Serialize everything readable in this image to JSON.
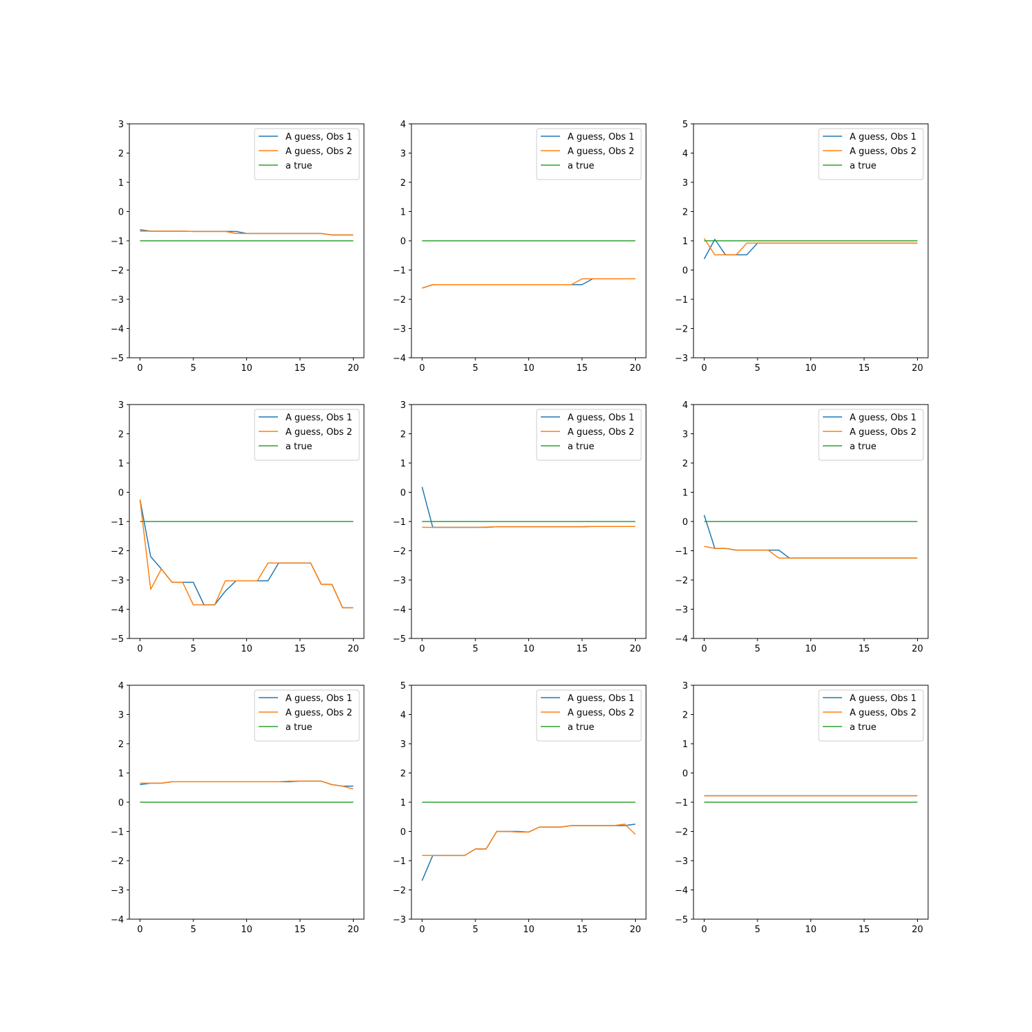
{
  "figure": {
    "colors": {
      "A guess, Obs 1": "#1f77b4",
      "A guess, Obs 2": "#ff7f0e",
      "a true": "#2ca02c"
    }
  },
  "chart_data": [
    {
      "type": "line",
      "xlim": [
        -1,
        21
      ],
      "ylim": [
        -5,
        3
      ],
      "x_ticks": [
        0,
        5,
        10,
        15,
        20
      ],
      "y_ticks": [
        -5,
        -4,
        -3,
        -2,
        -1,
        0,
        1,
        2,
        3
      ],
      "legend_position": "upper-right",
      "x": [
        0,
        1,
        2,
        3,
        4,
        5,
        6,
        7,
        8,
        9,
        10,
        11,
        12,
        13,
        14,
        15,
        16,
        17,
        18,
        19,
        20
      ],
      "series": [
        {
          "name": "A guess, Obs 1",
          "color": "#1f77b4",
          "values": [
            -0.62,
            -0.67,
            -0.67,
            -0.67,
            -0.67,
            -0.68,
            -0.68,
            -0.68,
            -0.68,
            -0.68,
            -0.75,
            -0.75,
            -0.75,
            -0.75,
            -0.75,
            -0.75,
            -0.75,
            -0.75,
            -0.8,
            -0.8,
            -0.8
          ]
        },
        {
          "name": "A guess, Obs 2",
          "color": "#ff7f0e",
          "values": [
            -0.67,
            -0.67,
            -0.67,
            -0.67,
            -0.67,
            -0.68,
            -0.68,
            -0.68,
            -0.68,
            -0.75,
            -0.75,
            -0.75,
            -0.75,
            -0.75,
            -0.75,
            -0.75,
            -0.75,
            -0.75,
            -0.8,
            -0.8,
            -0.8
          ]
        },
        {
          "name": "a true",
          "color": "#2ca02c",
          "values": [
            -1,
            -1,
            -1,
            -1,
            -1,
            -1,
            -1,
            -1,
            -1,
            -1,
            -1,
            -1,
            -1,
            -1,
            -1,
            -1,
            -1,
            -1,
            -1,
            -1,
            -1
          ]
        }
      ]
    },
    {
      "type": "line",
      "xlim": [
        -1,
        21
      ],
      "ylim": [
        -4,
        4
      ],
      "x_ticks": [
        0,
        5,
        10,
        15,
        20
      ],
      "y_ticks": [
        -4,
        -3,
        -2,
        -1,
        0,
        1,
        2,
        3,
        4
      ],
      "legend_position": "upper-right",
      "x": [
        0,
        1,
        2,
        3,
        4,
        5,
        6,
        7,
        8,
        9,
        10,
        11,
        12,
        13,
        14,
        15,
        16,
        17,
        18,
        19,
        20
      ],
      "series": [
        {
          "name": "A guess, Obs 1",
          "color": "#1f77b4",
          "values": [
            -1.62,
            -1.5,
            -1.5,
            -1.5,
            -1.5,
            -1.5,
            -1.5,
            -1.5,
            -1.5,
            -1.5,
            -1.5,
            -1.5,
            -1.5,
            -1.5,
            -1.5,
            -1.5,
            -1.3,
            -1.3,
            -1.3,
            -1.3,
            -1.3
          ]
        },
        {
          "name": "A guess, Obs 2",
          "color": "#ff7f0e",
          "values": [
            -1.62,
            -1.5,
            -1.5,
            -1.5,
            -1.5,
            -1.5,
            -1.5,
            -1.5,
            -1.5,
            -1.5,
            -1.5,
            -1.5,
            -1.5,
            -1.5,
            -1.5,
            -1.3,
            -1.3,
            -1.3,
            -1.3,
            -1.3,
            -1.3
          ]
        },
        {
          "name": "a true",
          "color": "#2ca02c",
          "values": [
            0,
            0,
            0,
            0,
            0,
            0,
            0,
            0,
            0,
            0,
            0,
            0,
            0,
            0,
            0,
            0,
            0,
            0,
            0,
            0,
            0
          ]
        }
      ]
    },
    {
      "type": "line",
      "xlim": [
        -1,
        21
      ],
      "ylim": [
        -3,
        5
      ],
      "x_ticks": [
        0,
        5,
        10,
        15,
        20
      ],
      "y_ticks": [
        -3,
        -2,
        -1,
        0,
        1,
        2,
        3,
        4,
        5
      ],
      "legend_position": "upper-right",
      "x": [
        0,
        1,
        2,
        3,
        4,
        5,
        6,
        7,
        8,
        9,
        10,
        11,
        12,
        13,
        14,
        15,
        16,
        17,
        18,
        19,
        20
      ],
      "series": [
        {
          "name": "A guess, Obs 1",
          "color": "#1f77b4",
          "values": [
            0.38,
            1.05,
            0.52,
            0.52,
            0.52,
            0.92,
            0.92,
            0.92,
            0.92,
            0.92,
            0.92,
            0.92,
            0.92,
            0.92,
            0.92,
            0.92,
            0.92,
            0.92,
            0.92,
            0.92,
            0.92
          ]
        },
        {
          "name": "A guess, Obs 2",
          "color": "#ff7f0e",
          "values": [
            1.08,
            0.52,
            0.52,
            0.52,
            0.92,
            0.92,
            0.92,
            0.92,
            0.92,
            0.92,
            0.92,
            0.92,
            0.92,
            0.92,
            0.92,
            0.92,
            0.92,
            0.92,
            0.92,
            0.92,
            0.92
          ]
        },
        {
          "name": "a true",
          "color": "#2ca02c",
          "values": [
            1,
            1,
            1,
            1,
            1,
            1,
            1,
            1,
            1,
            1,
            1,
            1,
            1,
            1,
            1,
            1,
            1,
            1,
            1,
            1,
            1
          ]
        }
      ]
    },
    {
      "type": "line",
      "xlim": [
        -1,
        21
      ],
      "ylim": [
        -5,
        3
      ],
      "x_ticks": [
        0,
        5,
        10,
        15,
        20
      ],
      "y_ticks": [
        -5,
        -4,
        -3,
        -2,
        -1,
        0,
        1,
        2,
        3
      ],
      "legend_position": "upper-right",
      "x": [
        0,
        1,
        2,
        3,
        4,
        5,
        6,
        7,
        8,
        9,
        10,
        11,
        12,
        13,
        14,
        15,
        16,
        17,
        18,
        19,
        20
      ],
      "series": [
        {
          "name": "A guess, Obs 1",
          "color": "#1f77b4",
          "values": [
            -0.25,
            -2.2,
            -2.62,
            -3.08,
            -3.08,
            -3.08,
            -3.85,
            -3.85,
            -3.38,
            -3.03,
            -3.03,
            -3.03,
            -3.03,
            -2.42,
            -2.42,
            -2.42,
            -2.42,
            -3.15,
            -3.15,
            -3.95,
            -3.95
          ]
        },
        {
          "name": "A guess, Obs 2",
          "color": "#ff7f0e",
          "values": [
            -0.25,
            -3.32,
            -2.62,
            -3.08,
            -3.08,
            -3.85,
            -3.85,
            -3.85,
            -3.03,
            -3.03,
            -3.03,
            -3.03,
            -2.42,
            -2.42,
            -2.42,
            -2.42,
            -2.42,
            -3.15,
            -3.15,
            -3.95,
            -3.95
          ]
        },
        {
          "name": "a true",
          "color": "#2ca02c",
          "values": [
            -1,
            -1,
            -1,
            -1,
            -1,
            -1,
            -1,
            -1,
            -1,
            -1,
            -1,
            -1,
            -1,
            -1,
            -1,
            -1,
            -1,
            -1,
            -1,
            -1,
            -1
          ]
        }
      ]
    },
    {
      "type": "line",
      "xlim": [
        -1,
        21
      ],
      "ylim": [
        -5,
        3
      ],
      "x_ticks": [
        0,
        5,
        10,
        15,
        20
      ],
      "y_ticks": [
        -5,
        -4,
        -3,
        -2,
        -1,
        0,
        1,
        2,
        3
      ],
      "legend_position": "upper-right",
      "x": [
        0,
        1,
        2,
        3,
        4,
        5,
        6,
        7,
        8,
        9,
        10,
        11,
        12,
        13,
        14,
        15,
        16,
        17,
        18,
        19,
        20
      ],
      "series": [
        {
          "name": "A guess, Obs 1",
          "color": "#1f77b4",
          "values": [
            0.18,
            -1.2,
            -1.2,
            -1.2,
            -1.2,
            -1.2,
            -1.2,
            -1.18,
            -1.18,
            -1.18,
            -1.18,
            -1.18,
            -1.18,
            -1.18,
            -1.18,
            -1.18,
            -1.17,
            -1.17,
            -1.17,
            -1.17,
            -1.17
          ]
        },
        {
          "name": "A guess, Obs 2",
          "color": "#ff7f0e",
          "values": [
            -1.2,
            -1.2,
            -1.2,
            -1.2,
            -1.2,
            -1.2,
            -1.19,
            -1.18,
            -1.18,
            -1.18,
            -1.18,
            -1.18,
            -1.18,
            -1.18,
            -1.18,
            -1.18,
            -1.17,
            -1.17,
            -1.17,
            -1.17,
            -1.17
          ]
        },
        {
          "name": "a true",
          "color": "#2ca02c",
          "values": [
            -1,
            -1,
            -1,
            -1,
            -1,
            -1,
            -1,
            -1,
            -1,
            -1,
            -1,
            -1,
            -1,
            -1,
            -1,
            -1,
            -1,
            -1,
            -1,
            -1,
            -1
          ]
        }
      ]
    },
    {
      "type": "line",
      "xlim": [
        -1,
        21
      ],
      "ylim": [
        -4,
        4
      ],
      "x_ticks": [
        0,
        5,
        10,
        15,
        20
      ],
      "y_ticks": [
        -4,
        -3,
        -2,
        -1,
        0,
        1,
        2,
        3,
        4
      ],
      "legend_position": "upper-right",
      "x": [
        0,
        1,
        2,
        3,
        4,
        5,
        6,
        7,
        8,
        9,
        10,
        11,
        12,
        13,
        14,
        15,
        16,
        17,
        18,
        19,
        20
      ],
      "series": [
        {
          "name": "A guess, Obs 1",
          "color": "#1f77b4",
          "values": [
            0.22,
            -0.92,
            -0.92,
            -0.98,
            -0.98,
            -0.98,
            -0.98,
            -0.98,
            -1.25,
            -1.25,
            -1.25,
            -1.25,
            -1.25,
            -1.25,
            -1.25,
            -1.25,
            -1.25,
            -1.25,
            -1.25,
            -1.25,
            -1.25
          ]
        },
        {
          "name": "A guess, Obs 2",
          "color": "#ff7f0e",
          "values": [
            -0.85,
            -0.92,
            -0.92,
            -0.98,
            -0.98,
            -0.98,
            -0.98,
            -1.25,
            -1.25,
            -1.25,
            -1.25,
            -1.25,
            -1.25,
            -1.25,
            -1.25,
            -1.25,
            -1.25,
            -1.25,
            -1.25,
            -1.25,
            -1.25
          ]
        },
        {
          "name": "a true",
          "color": "#2ca02c",
          "values": [
            0,
            0,
            0,
            0,
            0,
            0,
            0,
            0,
            0,
            0,
            0,
            0,
            0,
            0,
            0,
            0,
            0,
            0,
            0,
            0,
            0
          ]
        }
      ]
    },
    {
      "type": "line",
      "xlim": [
        -1,
        21
      ],
      "ylim": [
        -4,
        4
      ],
      "x_ticks": [
        0,
        5,
        10,
        15,
        20
      ],
      "y_ticks": [
        -4,
        -3,
        -2,
        -1,
        0,
        1,
        2,
        3,
        4
      ],
      "legend_position": "upper-right",
      "x": [
        0,
        1,
        2,
        3,
        4,
        5,
        6,
        7,
        8,
        9,
        10,
        11,
        12,
        13,
        14,
        15,
        16,
        17,
        18,
        19,
        20
      ],
      "series": [
        {
          "name": "A guess, Obs 1",
          "color": "#1f77b4",
          "values": [
            0.6,
            0.65,
            0.65,
            0.7,
            0.7,
            0.7,
            0.7,
            0.7,
            0.7,
            0.7,
            0.7,
            0.7,
            0.7,
            0.7,
            0.7,
            0.72,
            0.72,
            0.72,
            0.6,
            0.55,
            0.55
          ]
        },
        {
          "name": "A guess, Obs 2",
          "color": "#ff7f0e",
          "values": [
            0.65,
            0.65,
            0.65,
            0.7,
            0.7,
            0.7,
            0.7,
            0.7,
            0.7,
            0.7,
            0.7,
            0.7,
            0.7,
            0.7,
            0.72,
            0.72,
            0.72,
            0.72,
            0.6,
            0.55,
            0.45
          ]
        },
        {
          "name": "a true",
          "color": "#2ca02c",
          "values": [
            0,
            0,
            0,
            0,
            0,
            0,
            0,
            0,
            0,
            0,
            0,
            0,
            0,
            0,
            0,
            0,
            0,
            0,
            0,
            0,
            0
          ]
        }
      ]
    },
    {
      "type": "line",
      "xlim": [
        -1,
        21
      ],
      "ylim": [
        -3,
        5
      ],
      "x_ticks": [
        0,
        5,
        10,
        15,
        20
      ],
      "y_ticks": [
        -3,
        -2,
        -1,
        0,
        1,
        2,
        3,
        4,
        5
      ],
      "legend_position": "upper-right",
      "x": [
        0,
        1,
        2,
        3,
        4,
        5,
        6,
        7,
        8,
        9,
        10,
        11,
        12,
        13,
        14,
        15,
        16,
        17,
        18,
        19,
        20
      ],
      "series": [
        {
          "name": "A guess, Obs 1",
          "color": "#1f77b4",
          "values": [
            -1.68,
            -0.82,
            -0.82,
            -0.82,
            -0.82,
            -0.6,
            -0.6,
            0,
            0,
            0,
            -0.02,
            0.15,
            0.15,
            0.15,
            0.2,
            0.2,
            0.2,
            0.2,
            0.2,
            0.2,
            0.25
          ]
        },
        {
          "name": "A guess, Obs 2",
          "color": "#ff7f0e",
          "values": [
            -0.82,
            -0.82,
            -0.82,
            -0.82,
            -0.82,
            -0.6,
            -0.6,
            0,
            0,
            -0.02,
            -0.02,
            0.15,
            0.15,
            0.15,
            0.2,
            0.2,
            0.2,
            0.2,
            0.2,
            0.25,
            -0.1
          ]
        },
        {
          "name": "a true",
          "color": "#2ca02c",
          "values": [
            1,
            1,
            1,
            1,
            1,
            1,
            1,
            1,
            1,
            1,
            1,
            1,
            1,
            1,
            1,
            1,
            1,
            1,
            1,
            1,
            1
          ]
        }
      ]
    },
    {
      "type": "line",
      "xlim": [
        -1,
        21
      ],
      "ylim": [
        -5,
        3
      ],
      "x_ticks": [
        0,
        5,
        10,
        15,
        20
      ],
      "y_ticks": [
        -5,
        -4,
        -3,
        -2,
        -1,
        0,
        1,
        2,
        3
      ],
      "legend_position": "upper-right",
      "x": [
        0,
        1,
        2,
        3,
        4,
        5,
        6,
        7,
        8,
        9,
        10,
        11,
        12,
        13,
        14,
        15,
        16,
        17,
        18,
        19,
        20
      ],
      "series": [
        {
          "name": "A guess, Obs 1",
          "color": "#1f77b4",
          "values": [
            -0.78,
            -0.78,
            -0.78,
            -0.78,
            -0.78,
            -0.78,
            -0.78,
            -0.78,
            -0.78,
            -0.78,
            -0.78,
            -0.78,
            -0.78,
            -0.78,
            -0.78,
            -0.78,
            -0.78,
            -0.78,
            -0.78,
            -0.78,
            -0.78
          ]
        },
        {
          "name": "A guess, Obs 2",
          "color": "#ff7f0e",
          "values": [
            -0.78,
            -0.78,
            -0.78,
            -0.78,
            -0.78,
            -0.78,
            -0.78,
            -0.78,
            -0.78,
            -0.78,
            -0.78,
            -0.78,
            -0.78,
            -0.78,
            -0.78,
            -0.78,
            -0.78,
            -0.78,
            -0.78,
            -0.78,
            -0.78
          ]
        },
        {
          "name": "a true",
          "color": "#2ca02c",
          "values": [
            -1,
            -1,
            -1,
            -1,
            -1,
            -1,
            -1,
            -1,
            -1,
            -1,
            -1,
            -1,
            -1,
            -1,
            -1,
            -1,
            -1,
            -1,
            -1,
            -1,
            -1
          ]
        }
      ]
    }
  ]
}
